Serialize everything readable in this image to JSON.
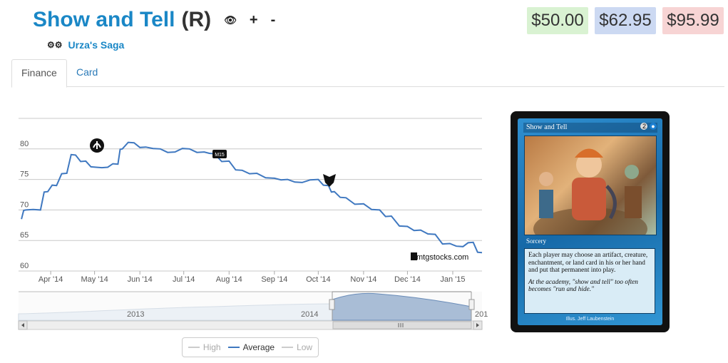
{
  "header": {
    "card_name": "Show and Tell",
    "rarity": "(R)",
    "set_name": "Urza's Saga",
    "plus_label": "+",
    "minus_label": "-"
  },
  "prices": [
    {
      "value": "$50.00",
      "bg": "#d9f2d2"
    },
    {
      "value": "$62.95",
      "bg": "#ccd9f2"
    },
    {
      "value": "$95.99",
      "bg": "#f7d4d4"
    }
  ],
  "tabs": [
    {
      "label": "Finance",
      "active": true
    },
    {
      "label": "Card",
      "active": false
    }
  ],
  "chart_data": {
    "type": "line",
    "watermark": "mtgstocks.com",
    "x_tick_labels": [
      "Apr '14",
      "May '14",
      "Jun '14",
      "Jul '14",
      "Aug '14",
      "Sep '14",
      "Oct '14",
      "Nov '14",
      "Dec '14",
      "Jan '15"
    ],
    "y_tick_labels": [
      "60",
      "65",
      "70",
      "75",
      "80"
    ],
    "ylim": [
      60,
      85
    ],
    "series": [
      {
        "name": "Average",
        "color": "#3f78c0",
        "points": [
          [
            "2014-03-12",
            68.5
          ],
          [
            "2014-03-15",
            70
          ],
          [
            "2014-03-25",
            70
          ],
          [
            "2014-03-30",
            73
          ],
          [
            "2014-04-05",
            74
          ],
          [
            "2014-04-12",
            76
          ],
          [
            "2014-04-18",
            79
          ],
          [
            "2014-04-25",
            78
          ],
          [
            "2014-05-02",
            77
          ],
          [
            "2014-05-10",
            77
          ],
          [
            "2014-05-17",
            77.5
          ],
          [
            "2014-05-20",
            80
          ],
          [
            "2014-05-28",
            81
          ],
          [
            "2014-06-05",
            80.3
          ],
          [
            "2014-06-15",
            80
          ],
          [
            "2014-06-25",
            79.5
          ],
          [
            "2014-07-05",
            80
          ],
          [
            "2014-07-15",
            79.5
          ],
          [
            "2014-07-22",
            79.2
          ],
          [
            "2014-08-01",
            78
          ],
          [
            "2014-08-10",
            76.5
          ],
          [
            "2014-08-20",
            76
          ],
          [
            "2014-09-01",
            75.2
          ],
          [
            "2014-09-10",
            75
          ],
          [
            "2014-09-20",
            74.5
          ],
          [
            "2014-10-01",
            75
          ],
          [
            "2014-10-08",
            74
          ],
          [
            "2014-10-12",
            73
          ],
          [
            "2014-10-20",
            72
          ],
          [
            "2014-11-01",
            71
          ],
          [
            "2014-11-12",
            70
          ],
          [
            "2014-11-20",
            69
          ],
          [
            "2014-12-01",
            67.3
          ],
          [
            "2014-12-10",
            66.7
          ],
          [
            "2014-12-20",
            66
          ],
          [
            "2014-12-30",
            64.5
          ],
          [
            "2015-01-08",
            64
          ],
          [
            "2015-01-15",
            64.7
          ],
          [
            "2015-01-21",
            63
          ]
        ]
      },
      {
        "name": "High",
        "color": "#bbbbbb",
        "points": []
      },
      {
        "name": "Low",
        "color": "#bbbbbb",
        "points": []
      }
    ],
    "navigator": {
      "labels": [
        "2013",
        "2014",
        "201"
      ]
    }
  },
  "card_image": {
    "name": "Show and Tell",
    "cost": "2",
    "type_line": "Sorcery",
    "rules_text": "Each player may choose an artifact, creature, enchantment, or land card in his or her hand and put that permanent into play.",
    "flavor_text": "At the academy, \"show and tell\" too often becomes \"run and hide.\"",
    "illustrator": "Illus. Jeff Laubenstein"
  },
  "legend": [
    {
      "label": "High",
      "color": "#cccccc",
      "text_color": "#aaaaaa"
    },
    {
      "label": "Average",
      "color": "#3f78c0",
      "text_color": "#333333"
    },
    {
      "label": "Low",
      "color": "#cccccc",
      "text_color": "#aaaaaa"
    }
  ]
}
